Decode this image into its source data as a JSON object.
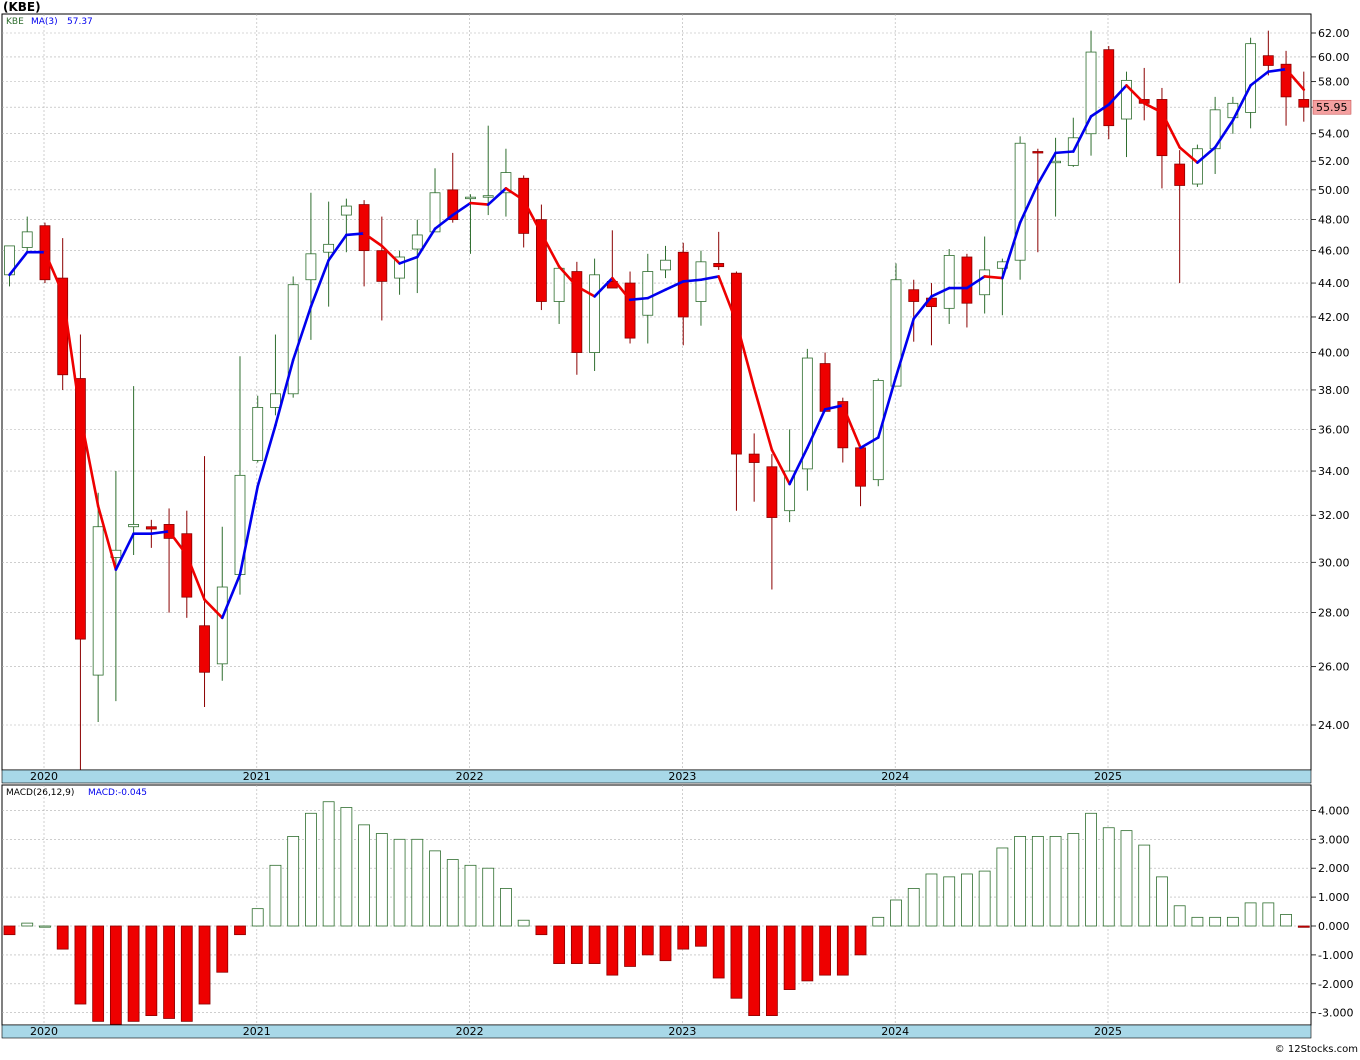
{
  "header": {
    "title": "(KBE)",
    "footer": "© 12Stocks.com"
  },
  "price_panel": {
    "legend_symbol": "KBE",
    "legend_ma": "MA(3)",
    "legend_ma_value": "57.37",
    "last_price_label": "55.95",
    "y_ticks": [
      "24.00",
      "26.00",
      "28.00",
      "30.00",
      "32.00",
      "34.00",
      "36.00",
      "38.00",
      "40.00",
      "42.00",
      "44.00",
      "46.00",
      "48.00",
      "50.00",
      "52.00",
      "54.00",
      "56.00",
      "58.00",
      "60.00",
      "62.00"
    ]
  },
  "macd_panel": {
    "legend_macd": "MACD(26,12,9)",
    "legend_value": "MACD:-0.045",
    "y_ticks": [
      "-3.000",
      "-2.000",
      "-1.000",
      "0.000",
      "1.000",
      "2.000",
      "3.000",
      "4.000"
    ]
  },
  "x_axis": {
    "years": [
      "2020",
      "2021",
      "2022",
      "2023",
      "2024",
      "2025"
    ]
  },
  "colors": {
    "up": "#2f6e2f",
    "down": "#ee0000",
    "ma_up": "#0000ee",
    "ma_down": "#ee0000",
    "axis_band": "#a8d8e8",
    "grid": "#b0b0b0",
    "last_price_bg": "#f4a0a0"
  },
  "chart_data": [
    {
      "type": "candlestick",
      "title": "(KBE)",
      "period": "monthly",
      "first_bar": "2020-01",
      "ylim": [
        22.5,
        63
      ],
      "log_scale": true,
      "grid": true,
      "bars": [
        [
          44.5,
          46.2,
          43.8,
          46.3
        ],
        [
          46.2,
          48.2,
          45.9,
          47.2
        ],
        [
          47.6,
          47.8,
          44.0,
          44.2
        ],
        [
          44.3,
          46.8,
          38.0,
          38.8
        ],
        [
          38.6,
          41.0,
          22.5,
          27.0
        ],
        [
          25.7,
          33.0,
          24.1,
          31.5
        ],
        [
          30.2,
          34.0,
          24.8,
          30.5
        ],
        [
          31.5,
          38.2,
          30.3,
          31.6
        ],
        [
          31.5,
          31.8,
          30.6,
          31.4
        ],
        [
          31.6,
          32.3,
          28.0,
          31.0
        ],
        [
          31.2,
          32.2,
          27.8,
          28.6
        ],
        [
          27.5,
          34.7,
          24.6,
          25.8
        ],
        [
          26.1,
          31.5,
          25.5,
          29.0
        ],
        [
          29.5,
          39.8,
          28.7,
          33.8
        ],
        [
          34.5,
          37.7,
          34.4,
          37.1
        ],
        [
          37.1,
          41.0,
          36.7,
          37.8
        ],
        [
          37.8,
          44.4,
          37.6,
          43.9
        ],
        [
          44.2,
          49.8,
          40.7,
          45.8
        ],
        [
          45.9,
          49.2,
          42.6,
          46.4
        ],
        [
          48.3,
          49.4,
          45.9,
          48.9
        ],
        [
          49.0,
          49.3,
          43.8,
          46.0
        ],
        [
          46.0,
          48.2,
          41.8,
          44.1
        ],
        [
          44.3,
          46.0,
          43.3,
          45.6
        ],
        [
          46.1,
          48.0,
          43.4,
          47.0
        ],
        [
          47.2,
          51.5,
          47.2,
          49.8
        ],
        [
          50.0,
          52.6,
          47.8,
          48.0
        ],
        [
          49.4,
          49.7,
          45.8,
          49.5
        ],
        [
          49.6,
          54.6,
          48.3,
          49.6
        ],
        [
          49.8,
          52.9,
          48.2,
          51.2
        ],
        [
          50.8,
          51.0,
          46.2,
          47.1
        ],
        [
          48.0,
          49.0,
          42.4,
          42.9
        ],
        [
          42.9,
          45.0,
          41.6,
          44.9
        ],
        [
          44.7,
          45.3,
          38.8,
          40.0
        ],
        [
          40.0,
          45.5,
          39.0,
          44.5
        ],
        [
          44.1,
          47.3,
          44.0,
          43.7
        ],
        [
          44.0,
          44.7,
          40.5,
          40.8
        ],
        [
          42.1,
          45.8,
          40.5,
          44.7
        ],
        [
          44.8,
          46.3,
          44.3,
          45.4
        ],
        [
          45.9,
          46.5,
          40.4,
          42.0
        ],
        [
          42.9,
          46.0,
          41.5,
          45.3
        ],
        [
          45.2,
          47.2,
          44.8,
          45.0
        ],
        [
          44.6,
          44.7,
          32.2,
          34.8
        ],
        [
          34.8,
          35.8,
          32.6,
          34.4
        ],
        [
          34.2,
          34.8,
          28.9,
          31.9
        ],
        [
          32.2,
          36.0,
          31.7,
          34.0
        ],
        [
          34.1,
          40.2,
          33.1,
          39.7
        ],
        [
          39.4,
          40.0,
          37.1,
          36.9
        ],
        [
          37.4,
          37.6,
          34.4,
          35.1
        ],
        [
          35.1,
          35.2,
          32.4,
          33.3
        ],
        [
          33.6,
          38.6,
          33.3,
          38.5
        ],
        [
          38.2,
          45.2,
          38.2,
          44.2
        ],
        [
          43.6,
          44.2,
          40.6,
          42.9
        ],
        [
          43.1,
          44.0,
          40.4,
          42.6
        ],
        [
          42.5,
          46.1,
          41.6,
          45.7
        ],
        [
          45.6,
          45.8,
          41.4,
          42.8
        ],
        [
          43.3,
          46.9,
          42.2,
          44.8
        ],
        [
          44.9,
          45.5,
          42.1,
          45.3
        ],
        [
          45.4,
          53.8,
          44.2,
          53.3
        ],
        [
          52.7,
          52.9,
          45.9,
          52.6
        ],
        [
          52.0,
          53.7,
          48.2,
          52.0
        ],
        [
          51.7,
          55.2,
          51.6,
          53.7
        ],
        [
          54.0,
          62.2,
          52.4,
          60.4
        ],
        [
          60.6,
          60.9,
          53.6,
          54.6
        ],
        [
          55.1,
          58.8,
          52.3,
          58.1
        ],
        [
          56.6,
          59.1,
          55.0,
          56.3
        ],
        [
          56.6,
          57.5,
          50.1,
          52.4
        ],
        [
          51.8,
          52.8,
          44.0,
          50.3
        ],
        [
          50.4,
          53.2,
          50.2,
          52.9
        ],
        [
          52.9,
          56.8,
          51.1,
          55.8
        ],
        [
          55.2,
          56.8,
          54.0,
          56.3
        ],
        [
          55.6,
          61.6,
          54.4,
          61.1
        ],
        [
          60.1,
          62.2,
          58.5,
          59.3
        ],
        [
          59.4,
          60.5,
          54.6,
          56.8
        ],
        [
          56.6,
          58.8,
          54.9,
          56.0
        ]
      ],
      "ma3": [
        44.5,
        45.9,
        45.9,
        43.4,
        36.7,
        32.4,
        29.7,
        31.2,
        31.2,
        31.3,
        30.3,
        28.5,
        27.8,
        29.5,
        33.3,
        36.2,
        39.6,
        42.6,
        45.4,
        47.0,
        47.1,
        46.3,
        45.2,
        45.6,
        47.4,
        48.3,
        49.1,
        49.0,
        50.1,
        49.3,
        47.1,
        45.0,
        43.8,
        43.2,
        44.3,
        43.0,
        43.1,
        43.6,
        44.1,
        44.2,
        44.4,
        41.7,
        38.1,
        35.0,
        33.4,
        35.1,
        37.0,
        37.2,
        35.1,
        35.6,
        38.7,
        41.9,
        43.2,
        43.7,
        43.7,
        44.4,
        44.3,
        47.8,
        50.4,
        52.6,
        52.7,
        55.3,
        56.2,
        57.7,
        56.3,
        55.6,
        53.0,
        51.9,
        53.0,
        55.0,
        57.7,
        58.8,
        59.0,
        57.37
      ],
      "ylabel": ""
    },
    {
      "type": "bar",
      "title": "MACD(26,12,9)",
      "first_bar": "2020-01",
      "ylim": [
        -3.4,
        4.5
      ],
      "grid": true,
      "values": [
        -0.3,
        0.1,
        0.0,
        -0.8,
        -2.7,
        -3.3,
        -3.4,
        -3.3,
        -3.1,
        -3.2,
        -3.3,
        -2.7,
        -1.6,
        -0.3,
        0.6,
        2.1,
        3.1,
        3.9,
        4.3,
        4.1,
        3.5,
        3.2,
        3.0,
        3.0,
        2.6,
        2.3,
        2.1,
        2.0,
        1.3,
        0.2,
        -0.3,
        -1.3,
        -1.3,
        -1.3,
        -1.7,
        -1.4,
        -1.0,
        -1.2,
        -0.8,
        -0.7,
        -1.8,
        -2.5,
        -3.1,
        -3.1,
        -2.2,
        -1.9,
        -1.7,
        -1.7,
        -1.0,
        0.3,
        0.9,
        1.3,
        1.8,
        1.7,
        1.8,
        1.9,
        2.7,
        3.1,
        3.1,
        3.1,
        3.2,
        3.9,
        3.4,
        3.3,
        2.8,
        1.7,
        0.7,
        0.3,
        0.3,
        0.3,
        0.8,
        0.8,
        0.4,
        -0.045
      ]
    }
  ]
}
